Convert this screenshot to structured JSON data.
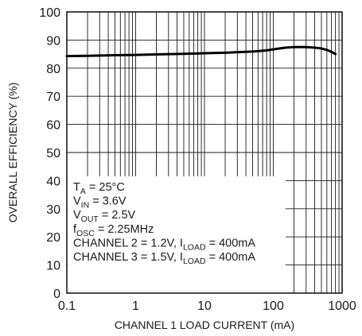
{
  "chart_data": {
    "type": "line",
    "xscale": "log",
    "xlim": [
      0.1,
      1000
    ],
    "ylim": [
      0,
      100
    ],
    "xlabel": "CHANNEL 1 LOAD CURRENT (mA)",
    "ylabel": "OVERALL EFFICIENCY (%)",
    "x_ticks": [
      {
        "value": 0.1,
        "label": "0.1"
      },
      {
        "value": 1,
        "label": "1"
      },
      {
        "value": 10,
        "label": "10"
      },
      {
        "value": 100,
        "label": "100"
      },
      {
        "value": 1000,
        "label": "1000"
      }
    ],
    "y_ticks": [
      {
        "value": 0,
        "label": "0"
      },
      {
        "value": 10,
        "label": "10"
      },
      {
        "value": 20,
        "label": "20"
      },
      {
        "value": 30,
        "label": "30"
      },
      {
        "value": 40,
        "label": "40"
      },
      {
        "value": 50,
        "label": "50"
      },
      {
        "value": 60,
        "label": "60"
      },
      {
        "value": 70,
        "label": "70"
      },
      {
        "value": 80,
        "label": "80"
      },
      {
        "value": 90,
        "label": "90"
      },
      {
        "value": 100,
        "label": "100"
      }
    ],
    "grid": true,
    "series": [
      {
        "x": [
          0.1,
          0.2,
          0.5,
          1,
          2,
          5,
          10,
          20,
          50,
          80,
          100,
          150,
          200,
          300,
          400,
          500,
          600,
          700,
          800
        ],
        "y": [
          84.3,
          84.4,
          84.6,
          84.7,
          84.9,
          85.1,
          85.3,
          85.5,
          85.9,
          86.3,
          86.7,
          87.3,
          87.5,
          87.5,
          87.3,
          87.0,
          86.5,
          85.8,
          85.0
        ],
        "color": "#000000"
      }
    ],
    "annotation": {
      "lines": [
        {
          "parts": [
            {
              "t": "T"
            },
            {
              "t": "A",
              "sub": true
            },
            {
              "t": " = 25°C"
            }
          ]
        },
        {
          "parts": [
            {
              "t": "V"
            },
            {
              "t": "IN",
              "sub": true
            },
            {
              "t": " = 3.6V"
            }
          ]
        },
        {
          "parts": [
            {
              "t": "V"
            },
            {
              "t": "OUT",
              "sub": true
            },
            {
              "t": " = 2.5V"
            }
          ]
        },
        {
          "parts": [
            {
              "t": "f"
            },
            {
              "t": "OSC",
              "sub": true
            },
            {
              "t": " = 2.25MHz"
            }
          ]
        },
        {
          "parts": [
            {
              "t": "CHANNEL 2 = 1.2V, I"
            },
            {
              "t": "LOAD",
              "sub": true
            },
            {
              "t": " = 400mA"
            }
          ]
        },
        {
          "parts": [
            {
              "t": "CHANNEL 3 = 1.5V, I"
            },
            {
              "t": "LOAD",
              "sub": true
            },
            {
              "t": " = 400mA"
            }
          ]
        }
      ]
    }
  }
}
